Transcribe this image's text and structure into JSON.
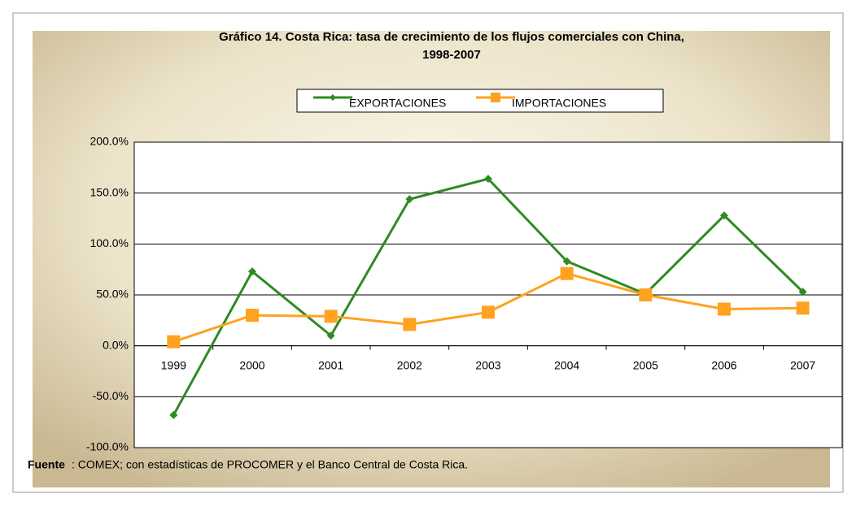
{
  "chart_data": {
    "type": "line",
    "title": "Gráfico 14. Costa Rica: tasa de crecimiento de los flujos comerciales con China,",
    "subtitle": "1998-2007",
    "categories": [
      "1999",
      "2000",
      "2001",
      "2002",
      "2003",
      "2004",
      "2005",
      "2006",
      "2007"
    ],
    "series": [
      {
        "name": "EXPORTACIONES",
        "color": "#2e8b22",
        "marker": "diamond",
        "values": [
          -68,
          73,
          10,
          144,
          164,
          83,
          51,
          128,
          53
        ]
      },
      {
        "name": "IMPORTACIONES",
        "color": "#ffa21f",
        "marker": "square",
        "values": [
          4,
          30,
          29,
          21,
          33,
          71,
          50,
          36,
          37
        ]
      }
    ],
    "ylim": [
      -100,
      200
    ],
    "yticks": [
      {
        "value": -100,
        "label": "-100.0%"
      },
      {
        "value": -50,
        "label": "-50.0%"
      },
      {
        "value": 0,
        "label": "0.0%"
      },
      {
        "value": 50,
        "label": "50.0%"
      },
      {
        "value": 100,
        "label": "100.0%"
      },
      {
        "value": 150,
        "label": "150.0%"
      },
      {
        "value": 200,
        "label": "200.0%"
      }
    ],
    "grid": true,
    "legend": "top",
    "source_label": "Fuente",
    "source_text": ": COMEX; con estadísticas de PROCOMER y el Banco Central de Costa Rica."
  }
}
